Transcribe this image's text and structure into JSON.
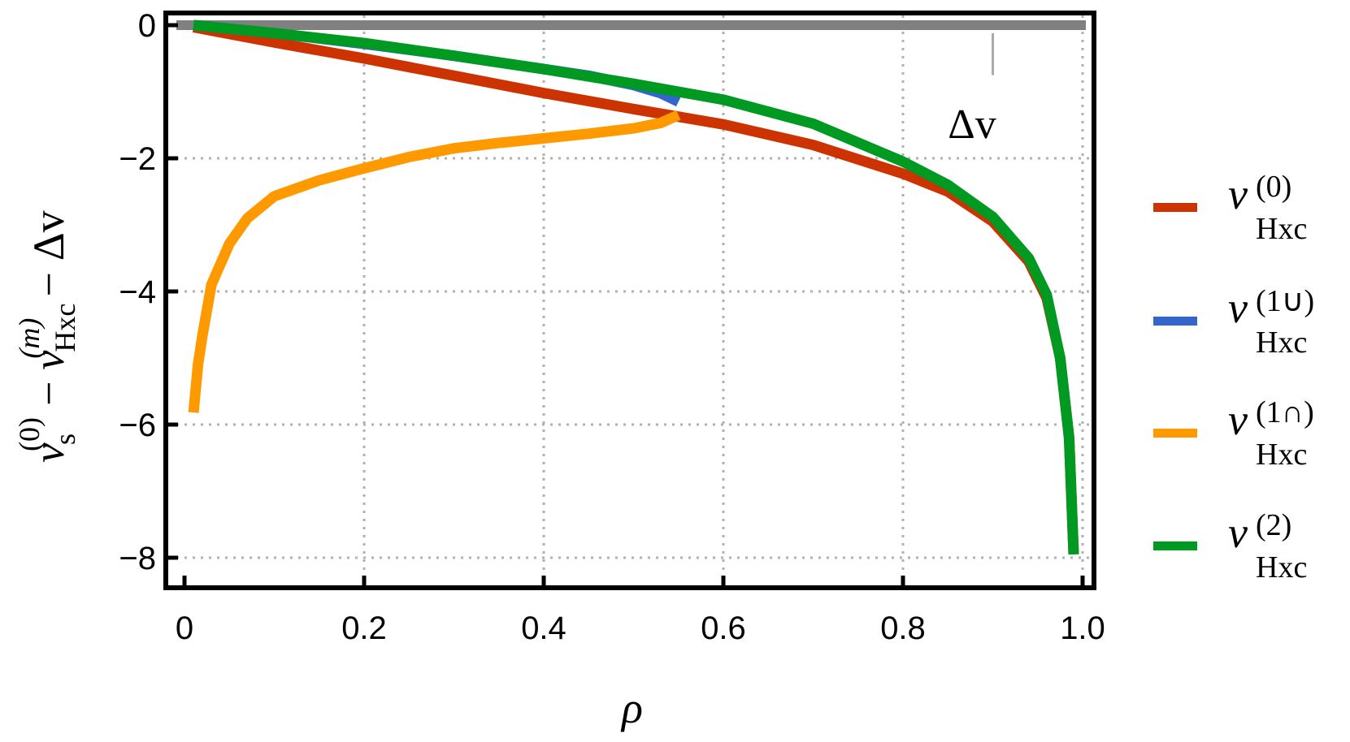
{
  "chart_data": {
    "type": "line",
    "title": "",
    "xlabel": "ρ",
    "ylabel": "v_s^(0) − v_Hxc^(m) − Δv",
    "ylabel_parts": {
      "v": "v",
      "s_sub": "s",
      "s_sup": "(0)",
      "minus1": "−",
      "hxc_sub": "Hxc",
      "hxc_sup": "(m)",
      "minus2": "−",
      "delta": "Δv"
    },
    "xlim": [
      0,
      1.0
    ],
    "ylim": [
      -8.4,
      0.2
    ],
    "xticks": [
      0,
      0.2,
      0.4,
      0.6,
      0.8,
      1.0
    ],
    "xtick_labels": [
      "0",
      "0.2",
      "0.4",
      "0.6",
      "0.8",
      "1.0"
    ],
    "yticks": [
      0,
      -2,
      -4,
      -6,
      -8
    ],
    "ytick_labels": [
      "0",
      "−2",
      "−4",
      "−6",
      "−8"
    ],
    "grid": true,
    "legend_position": "right",
    "annotations": [
      {
        "text": "Δv",
        "x": 0.9,
        "y": -1.4,
        "note": "vertical gray bar from y=-0.1 to y=-0.8 at x=0.9 indicating gap Δv"
      }
    ],
    "reference_line": {
      "name": "zero",
      "color": "#808080",
      "x": [
        0.0,
        1.0
      ],
      "y": [
        0,
        0
      ]
    },
    "series": [
      {
        "name": "v_Hxc^(0)",
        "legend_sup": "(0)",
        "legend_sub": "Hxc",
        "color": "#CC3300",
        "x": [
          0.01,
          0.1,
          0.2,
          0.3,
          0.4,
          0.5,
          0.6,
          0.7,
          0.8,
          0.85,
          0.9,
          0.94,
          0.96,
          0.975,
          0.985,
          0.99
        ],
        "y": [
          -0.03,
          -0.26,
          -0.5,
          -0.76,
          -1.02,
          -1.26,
          -1.49,
          -1.8,
          -2.23,
          -2.5,
          -2.95,
          -3.55,
          -4.1,
          -5.0,
          -6.2,
          -7.95
        ]
      },
      {
        "name": "v_Hxc^(1∪)",
        "legend_sup": "(1∪)",
        "legend_sub": "Hxc",
        "color": "#3366CC",
        "x": [
          0.01,
          0.1,
          0.2,
          0.3,
          0.4,
          0.45,
          0.5,
          0.53,
          0.55
        ],
        "y": [
          0.0,
          -0.12,
          -0.28,
          -0.46,
          -0.66,
          -0.76,
          -0.9,
          -1.02,
          -1.15
        ]
      },
      {
        "name": "v_Hxc^(1∩)",
        "legend_sup": "(1∩)",
        "legend_sub": "Hxc",
        "color": "#FF9900",
        "x": [
          0.01,
          0.015,
          0.02,
          0.03,
          0.05,
          0.07,
          0.1,
          0.15,
          0.2,
          0.25,
          0.3,
          0.35,
          0.4,
          0.45,
          0.5,
          0.53,
          0.55
        ],
        "y": [
          -5.82,
          -5.1,
          -4.66,
          -3.9,
          -3.28,
          -2.9,
          -2.57,
          -2.33,
          -2.15,
          -1.98,
          -1.85,
          -1.77,
          -1.7,
          -1.63,
          -1.55,
          -1.47,
          -1.35
        ]
      },
      {
        "name": "v_Hxc^(2)",
        "legend_sup": "(2)",
        "legend_sub": "Hxc",
        "color": "#009922",
        "x": [
          0.01,
          0.1,
          0.2,
          0.3,
          0.4,
          0.5,
          0.6,
          0.7,
          0.8,
          0.85,
          0.9,
          0.94,
          0.96,
          0.975,
          0.985,
          0.99
        ],
        "y": [
          0.0,
          -0.12,
          -0.27,
          -0.46,
          -0.66,
          -0.88,
          -1.12,
          -1.48,
          -2.05,
          -2.4,
          -2.88,
          -3.5,
          -4.05,
          -5.0,
          -6.2,
          -7.95
        ]
      }
    ]
  },
  "legend": {
    "items": [
      {
        "v": "v",
        "sup": "(0)",
        "sub": "Hxc",
        "color": "#CC3300"
      },
      {
        "v": "v",
        "sup": "(1∪)",
        "sub": "Hxc",
        "color": "#3366CC"
      },
      {
        "v": "v",
        "sup": "(1∩)",
        "sub": "Hxc",
        "color": "#FF9900"
      },
      {
        "v": "v",
        "sup": "(2)",
        "sub": "Hxc",
        "color": "#009922"
      }
    ]
  }
}
